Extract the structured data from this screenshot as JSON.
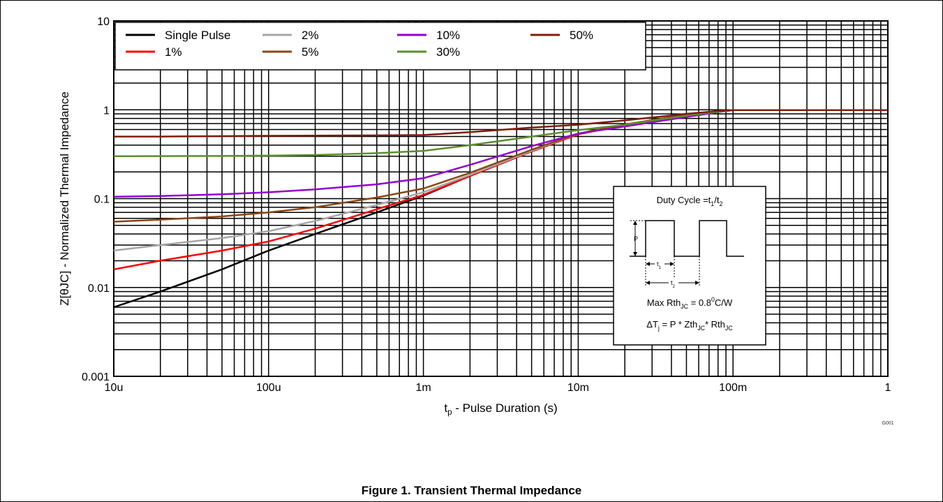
{
  "caption": "Figure 1.  Transient Thermal Impedance",
  "chart_data": {
    "type": "line",
    "title": "",
    "xlabel_main": "t",
    "xlabel_sub": "p",
    "xlabel_rest": " - Pulse Duration (s)",
    "ylabel": "Z[θJC] - Normalized Thermal Impedance",
    "x_scale": "log",
    "y_scale": "log",
    "xlim": [
      1e-05,
      1
    ],
    "ylim": [
      0.001,
      10
    ],
    "x_ticks": [
      {
        "value": 1e-05,
        "label": "10u"
      },
      {
        "value": 0.0001,
        "label": "100u"
      },
      {
        "value": 0.001,
        "label": "1m"
      },
      {
        "value": 0.01,
        "label": "10m"
      },
      {
        "value": 0.1,
        "label": "100m"
      },
      {
        "value": 1,
        "label": "1"
      }
    ],
    "y_ticks": [
      {
        "value": 0.001,
        "label": "0.001"
      },
      {
        "value": 0.01,
        "label": "0.01"
      },
      {
        "value": 0.1,
        "label": "0.1"
      },
      {
        "value": 1,
        "label": "1"
      },
      {
        "value": 10,
        "label": "10"
      }
    ],
    "grid": true,
    "legend_position": "top-left",
    "figure_id": "G001",
    "series": [
      {
        "name": "Single Pulse",
        "color": "#000000",
        "x": [
          1e-05,
          2e-05,
          5e-05,
          0.0001,
          0.0002,
          0.0005,
          0.001,
          0.002,
          0.005,
          0.01,
          0.02,
          0.05,
          0.08,
          0.1,
          0.2,
          0.5,
          1
        ],
        "y": [
          0.006,
          0.009,
          0.016,
          0.026,
          0.04,
          0.07,
          0.108,
          0.18,
          0.34,
          0.53,
          0.68,
          0.88,
          0.96,
          0.99,
          0.99,
          0.99,
          0.99
        ]
      },
      {
        "name": "1%",
        "color": "#ff0000",
        "x": [
          1e-05,
          2e-05,
          5e-05,
          0.0001,
          0.0002,
          0.0005,
          0.001,
          0.002,
          0.005,
          0.01,
          0.02,
          0.05,
          0.08,
          0.1,
          1
        ],
        "y": [
          0.016,
          0.02,
          0.026,
          0.033,
          0.046,
          0.076,
          0.11,
          0.18,
          0.34,
          0.53,
          0.68,
          0.88,
          0.96,
          0.99,
          0.99
        ]
      },
      {
        "name": "2%",
        "color": "#a6a6a6",
        "x": [
          1e-05,
          2e-05,
          5e-05,
          0.0001,
          0.0002,
          0.0005,
          0.001,
          0.002,
          0.005,
          0.01,
          0.02,
          0.05,
          0.08,
          0.1,
          1
        ],
        "y": [
          0.026,
          0.03,
          0.036,
          0.043,
          0.056,
          0.085,
          0.118,
          0.185,
          0.345,
          0.54,
          0.68,
          0.88,
          0.96,
          0.99,
          0.99
        ]
      },
      {
        "name": "5%",
        "color": "#8b4513",
        "x": [
          1e-05,
          2e-05,
          5e-05,
          0.0001,
          0.0002,
          0.0005,
          0.001,
          0.002,
          0.005,
          0.01,
          0.02,
          0.05,
          0.08,
          0.1,
          1
        ],
        "y": [
          0.055,
          0.058,
          0.063,
          0.07,
          0.08,
          0.103,
          0.13,
          0.195,
          0.355,
          0.54,
          0.685,
          0.88,
          0.96,
          0.99,
          0.99
        ]
      },
      {
        "name": "10%",
        "color": "#9400d3",
        "x": [
          1e-05,
          2e-05,
          5e-05,
          0.0001,
          0.0002,
          0.0005,
          0.001,
          0.002,
          0.005,
          0.01,
          0.02,
          0.05,
          0.08,
          0.1,
          1
        ],
        "y": [
          0.105,
          0.107,
          0.112,
          0.118,
          0.127,
          0.145,
          0.17,
          0.24,
          0.39,
          0.54,
          0.65,
          0.83,
          0.94,
          0.99,
          0.99
        ]
      },
      {
        "name": "30%",
        "color": "#5a8f29",
        "x": [
          1e-05,
          2e-05,
          5e-05,
          0.0001,
          0.0002,
          0.0005,
          0.001,
          0.002,
          0.005,
          0.01,
          0.02,
          0.05,
          0.08,
          0.1,
          1
        ],
        "y": [
          0.3,
          0.301,
          0.302,
          0.305,
          0.31,
          0.325,
          0.345,
          0.4,
          0.5,
          0.59,
          0.68,
          0.86,
          0.95,
          0.99,
          0.99
        ]
      },
      {
        "name": "50%",
        "color": "#7f1d0a",
        "x": [
          1e-05,
          2e-05,
          5e-05,
          0.0001,
          0.0002,
          0.0005,
          0.001,
          0.002,
          0.005,
          0.01,
          0.02,
          0.05,
          0.08,
          0.1,
          1
        ],
        "y": [
          0.5,
          0.5,
          0.505,
          0.51,
          0.512,
          0.515,
          0.52,
          0.56,
          0.63,
          0.68,
          0.76,
          0.9,
          0.97,
          0.99,
          0.99
        ]
      }
    ],
    "inset": {
      "duty_cycle": {
        "prefix": "Duty Cycle =t",
        "sub1": "1",
        "mid": "/t",
        "sub2": "2"
      },
      "p_label": "P",
      "t1_label": {
        "main": "t",
        "sub": "1"
      },
      "t2_label": {
        "main": "t",
        "sub": "2"
      },
      "rth": {
        "prefix": "Max Rth",
        "sub": "JC",
        "mid": " = 0.8",
        "sup": "0",
        "suffix": "C/W"
      },
      "dtj": {
        "a": "ΔT",
        "a_sub": "j",
        "b": " = P * Zth",
        "b_sub": "JC",
        "c": "* Rth",
        "c_sub": "JC"
      }
    }
  }
}
